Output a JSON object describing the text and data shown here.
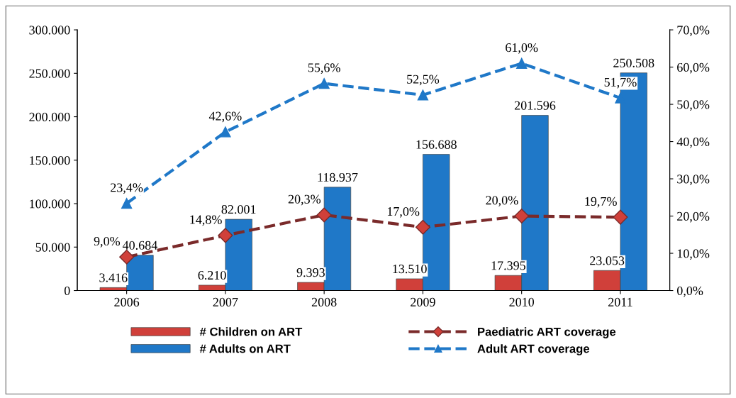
{
  "chart_data": {
    "type": "bar",
    "categories": [
      "2006",
      "2007",
      "2008",
      "2009",
      "2010",
      "2011"
    ],
    "series": [
      {
        "name": "# Children on ART",
        "color": "#d0403a",
        "values": [
          3416,
          6210,
          9393,
          13510,
          17395,
          23053
        ],
        "value_labels": [
          "3.416",
          "6.210",
          "9.393",
          "13.510",
          "17.395",
          "23.053"
        ]
      },
      {
        "name": "# Adults on ART",
        "color": "#1f78c8",
        "values": [
          40684,
          82001,
          118937,
          156688,
          201596,
          250508
        ],
        "value_labels": [
          "40.684",
          "82.001",
          "118.937",
          "156.688",
          "201.596",
          "250.508"
        ]
      },
      {
        "name": "Paediatric ART coverage",
        "type": "line",
        "axis": "y2",
        "color": "#7a2a2a",
        "marker": "diamond",
        "line_style": "dashed",
        "values": [
          9.0,
          14.8,
          20.3,
          17.0,
          20.0,
          19.7
        ],
        "value_labels": [
          "9,0%",
          "14,8%",
          "20,3%",
          "17,0%",
          "20,0%",
          "19,7%"
        ]
      },
      {
        "name": "Adult ART coverage",
        "type": "line",
        "axis": "y2",
        "color": "#1f78c8",
        "marker": "triangle",
        "line_style": "dashed",
        "values": [
          23.4,
          42.6,
          55.6,
          52.5,
          61.0,
          51.7
        ],
        "value_labels": [
          "23,4%",
          "42,6%",
          "55,6%",
          "52,5%",
          "61,0%",
          "51,7%"
        ]
      }
    ],
    "ylim": [
      0,
      300000
    ],
    "yticks": [
      {
        "value": 0,
        "label": "0"
      },
      {
        "value": 50000,
        "label": "50.000"
      },
      {
        "value": 100000,
        "label": "100.000"
      },
      {
        "value": 150000,
        "label": "150.000"
      },
      {
        "value": 200000,
        "label": "200.000"
      },
      {
        "value": 250000,
        "label": "250.000"
      },
      {
        "value": 300000,
        "label": "300.000"
      }
    ],
    "y2lim": [
      0,
      70
    ],
    "y2ticks": [
      {
        "value": 0,
        "label": "0,0%"
      },
      {
        "value": 10,
        "label": "10,0%"
      },
      {
        "value": 20,
        "label": "20,0%"
      },
      {
        "value": 30,
        "label": "30,0%"
      },
      {
        "value": 40,
        "label": "40,0%"
      },
      {
        "value": 50,
        "label": "50,0%"
      },
      {
        "value": 60,
        "label": "60,0%"
      },
      {
        "value": 70,
        "label": "70,0%"
      }
    ],
    "grid": false,
    "legend": "bottom"
  }
}
